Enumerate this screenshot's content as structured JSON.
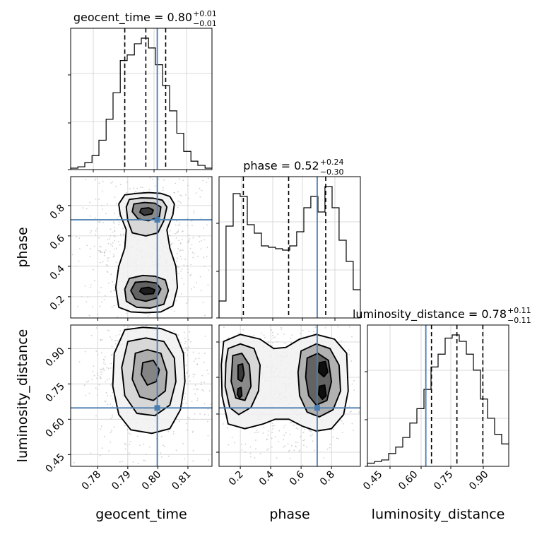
{
  "chart_data": [
    {
      "type": "histogram",
      "panel": "geocent_time",
      "title_param": "geocent_time",
      "title_value": "0.80",
      "title_plus": "+0.01",
      "title_minus": "−0.01",
      "xlim": [
        0.771,
        0.818
      ],
      "bins": [
        0.771,
        0.7734,
        0.7757,
        0.7781,
        0.7804,
        0.7828,
        0.7851,
        0.7875,
        0.7898,
        0.7922,
        0.7945,
        0.7969,
        0.7992,
        0.8016,
        0.8039,
        0.8063,
        0.8086,
        0.811,
        0.8133,
        0.8157,
        0.818
      ],
      "counts": [
        1,
        2,
        5,
        10,
        21,
        36,
        55,
        78,
        82,
        90,
        94,
        87,
        75,
        60,
        42,
        26,
        13,
        6,
        3,
        1
      ],
      "quantiles": [
        0.789,
        0.796,
        0.8026
      ],
      "truth": 0.7998
    },
    {
      "type": "histogram",
      "panel": "phase",
      "title_param": "phase",
      "title_value": "0.52",
      "title_plus": "+0.24",
      "title_minus": "−0.30",
      "xlim": [
        0.06,
        0.99
      ],
      "bins": [
        0.06,
        0.106,
        0.153,
        0.199,
        0.246,
        0.292,
        0.339,
        0.385,
        0.432,
        0.478,
        0.525,
        0.571,
        0.618,
        0.664,
        0.711,
        0.757,
        0.804,
        0.85,
        0.897,
        0.943,
        0.99
      ],
      "counts": [
        12,
        65,
        88,
        86,
        66,
        60,
        51,
        50,
        49,
        48,
        51,
        61,
        78,
        86,
        75,
        93,
        78,
        55,
        40,
        20
      ],
      "quantiles": [
        0.22,
        0.518,
        0.762
      ],
      "truth": 0.706
    },
    {
      "type": "histogram",
      "panel": "luminosity_distance",
      "title_param": "luminosity_distance",
      "title_value": "0.78",
      "title_plus": "+0.11",
      "title_minus": "−0.11",
      "xlim": [
        0.4,
        1.0
      ],
      "bins": [
        0.4,
        0.43,
        0.46,
        0.49,
        0.52,
        0.55,
        0.58,
        0.61,
        0.64,
        0.67,
        0.7,
        0.73,
        0.76,
        0.79,
        0.82,
        0.85,
        0.88,
        0.91,
        0.94,
        0.97,
        1.0
      ],
      "counts": [
        2,
        3,
        4,
        8,
        12,
        18,
        27,
        36,
        48,
        62,
        70,
        80,
        82,
        78,
        70,
        60,
        42,
        30,
        20,
        14
      ],
      "quantiles": [
        0.672,
        0.78,
        0.89
      ],
      "truth": 0.648
    },
    {
      "type": "scatter",
      "panel": "geocent_time-phase",
      "x_param": "geocent_time",
      "y_param": "phase",
      "xlim": [
        0.771,
        0.818
      ],
      "ylim": [
        0.06,
        0.99
      ],
      "ticks_y": [
        "0.2",
        "0.4",
        "0.6",
        "0.8"
      ],
      "tick_values_y": [
        0.2,
        0.4,
        0.6,
        0.8
      ],
      "truth": [
        0.7998,
        0.706
      ],
      "contours": [
        [
          [
            0.789,
            0.87
          ],
          [
            0.793,
            0.88
          ],
          [
            0.797,
            0.885
          ],
          [
            0.801,
            0.88
          ],
          [
            0.804,
            0.86
          ],
          [
            0.8055,
            0.81
          ],
          [
            0.805,
            0.74
          ],
          [
            0.803,
            0.64
          ],
          [
            0.804,
            0.52
          ],
          [
            0.806,
            0.4
          ],
          [
            0.8065,
            0.26
          ],
          [
            0.805,
            0.14
          ],
          [
            0.801,
            0.1
          ],
          [
            0.796,
            0.095
          ],
          [
            0.791,
            0.1
          ],
          [
            0.787,
            0.13
          ],
          [
            0.786,
            0.26
          ],
          [
            0.787,
            0.4
          ],
          [
            0.789,
            0.52
          ],
          [
            0.7895,
            0.64
          ],
          [
            0.7875,
            0.74
          ],
          [
            0.787,
            0.81
          ]
        ],
        [
          [
            0.7905,
            0.84
          ],
          [
            0.7945,
            0.85
          ],
          [
            0.7985,
            0.848
          ],
          [
            0.8015,
            0.835
          ],
          [
            0.803,
            0.79
          ],
          [
            0.802,
            0.7
          ],
          [
            0.8,
            0.62
          ],
          [
            0.796,
            0.6
          ],
          [
            0.7915,
            0.62
          ],
          [
            0.79,
            0.7
          ],
          [
            0.7895,
            0.79
          ]
        ],
        [
          [
            0.7905,
            0.32
          ],
          [
            0.795,
            0.34
          ],
          [
            0.799,
            0.335
          ],
          [
            0.8025,
            0.31
          ],
          [
            0.8035,
            0.24
          ],
          [
            0.802,
            0.15
          ],
          [
            0.7975,
            0.125
          ],
          [
            0.793,
            0.13
          ],
          [
            0.7895,
            0.17
          ],
          [
            0.789,
            0.25
          ]
        ],
        [
          [
            0.792,
            0.81
          ],
          [
            0.7955,
            0.82
          ],
          [
            0.799,
            0.815
          ],
          [
            0.801,
            0.79
          ],
          [
            0.8005,
            0.725
          ],
          [
            0.797,
            0.7
          ],
          [
            0.7935,
            0.71
          ],
          [
            0.7915,
            0.76
          ]
        ],
        [
          [
            0.7925,
            0.295
          ],
          [
            0.796,
            0.3
          ],
          [
            0.7995,
            0.29
          ],
          [
            0.801,
            0.25
          ],
          [
            0.7995,
            0.19
          ],
          [
            0.796,
            0.17
          ],
          [
            0.7925,
            0.185
          ],
          [
            0.791,
            0.24
          ]
        ],
        [
          [
            0.7945,
            0.78
          ],
          [
            0.797,
            0.785
          ],
          [
            0.7985,
            0.77
          ],
          [
            0.798,
            0.745
          ],
          [
            0.7955,
            0.735
          ],
          [
            0.794,
            0.755
          ]
        ],
        [
          [
            0.7945,
            0.255
          ],
          [
            0.797,
            0.262
          ],
          [
            0.799,
            0.245
          ],
          [
            0.7985,
            0.22
          ],
          [
            0.7955,
            0.215
          ],
          [
            0.794,
            0.235
          ]
        ]
      ]
    },
    {
      "type": "scatter",
      "panel": "geocent_time-luminosity_distance",
      "x_param": "geocent_time",
      "y_param": "luminosity_distance",
      "xlim": [
        0.771,
        0.818
      ],
      "ylim": [
        0.4,
        1.0
      ],
      "ticks_x": [
        "0.78",
        "0.79",
        "0.80",
        "0.81"
      ],
      "tick_values_x": [
        0.78,
        0.79,
        0.8,
        0.81
      ],
      "ticks_y": [
        "0.45",
        "0.60",
        "0.75",
        "0.90"
      ],
      "tick_values_y": [
        0.45,
        0.6,
        0.75,
        0.9
      ],
      "truth": [
        0.7998,
        0.648
      ],
      "contours": [
        [
          [
            0.789,
            0.98
          ],
          [
            0.795,
            0.99
          ],
          [
            0.801,
            0.985
          ],
          [
            0.806,
            0.96
          ],
          [
            0.8085,
            0.88
          ],
          [
            0.809,
            0.76
          ],
          [
            0.8075,
            0.64
          ],
          [
            0.804,
            0.56
          ],
          [
            0.798,
            0.54
          ],
          [
            0.791,
            0.555
          ],
          [
            0.787,
            0.62
          ],
          [
            0.785,
            0.74
          ],
          [
            0.7855,
            0.88
          ]
        ],
        [
          [
            0.79,
            0.93
          ],
          [
            0.796,
            0.945
          ],
          [
            0.802,
            0.93
          ],
          [
            0.8055,
            0.86
          ],
          [
            0.806,
            0.76
          ],
          [
            0.804,
            0.66
          ],
          [
            0.799,
            0.615
          ],
          [
            0.793,
            0.625
          ],
          [
            0.789,
            0.7
          ],
          [
            0.788,
            0.82
          ]
        ],
        [
          [
            0.7925,
            0.88
          ],
          [
            0.7965,
            0.895
          ],
          [
            0.801,
            0.88
          ],
          [
            0.803,
            0.8
          ],
          [
            0.8025,
            0.72
          ],
          [
            0.7985,
            0.68
          ],
          [
            0.794,
            0.695
          ],
          [
            0.7915,
            0.77
          ]
        ],
        [
          [
            0.795,
            0.84
          ],
          [
            0.7985,
            0.85
          ],
          [
            0.8005,
            0.81
          ],
          [
            0.7995,
            0.76
          ],
          [
            0.7965,
            0.745
          ],
          [
            0.7945,
            0.79
          ]
        ]
      ]
    },
    {
      "type": "scatter",
      "panel": "phase-luminosity_distance",
      "x_param": "phase",
      "y_param": "luminosity_distance",
      "xlim": [
        0.06,
        0.99
      ],
      "ylim": [
        0.4,
        1.0
      ],
      "ticks_x": [
        "0.2",
        "0.4",
        "0.6",
        "0.8"
      ],
      "tick_values_x": [
        0.2,
        0.4,
        0.6,
        0.8
      ],
      "truth": [
        0.706,
        0.648
      ],
      "contours": [
        [
          [
            0.09,
            0.93
          ],
          [
            0.2,
            0.96
          ],
          [
            0.33,
            0.94
          ],
          [
            0.42,
            0.9
          ],
          [
            0.5,
            0.905
          ],
          [
            0.59,
            0.94
          ],
          [
            0.7,
            0.96
          ],
          [
            0.82,
            0.94
          ],
          [
            0.9,
            0.88
          ],
          [
            0.91,
            0.72
          ],
          [
            0.88,
            0.62
          ],
          [
            0.8,
            0.56
          ],
          [
            0.7,
            0.55
          ],
          [
            0.61,
            0.57
          ],
          [
            0.52,
            0.6
          ],
          [
            0.43,
            0.6
          ],
          [
            0.35,
            0.58
          ],
          [
            0.23,
            0.56
          ],
          [
            0.12,
            0.58
          ],
          [
            0.08,
            0.7
          ],
          [
            0.075,
            0.83
          ]
        ],
        [
          [
            0.12,
            0.9
          ],
          [
            0.2,
            0.92
          ],
          [
            0.29,
            0.9
          ],
          [
            0.33,
            0.83
          ],
          [
            0.32,
            0.72
          ],
          [
            0.27,
            0.65
          ],
          [
            0.19,
            0.62
          ],
          [
            0.13,
            0.65
          ],
          [
            0.1,
            0.74
          ],
          [
            0.105,
            0.84
          ]
        ],
        [
          [
            0.6,
            0.89
          ],
          [
            0.7,
            0.92
          ],
          [
            0.79,
            0.9
          ],
          [
            0.85,
            0.83
          ],
          [
            0.86,
            0.72
          ],
          [
            0.81,
            0.64
          ],
          [
            0.72,
            0.61
          ],
          [
            0.64,
            0.63
          ],
          [
            0.59,
            0.7
          ],
          [
            0.58,
            0.8
          ]
        ],
        [
          [
            0.15,
            0.87
          ],
          [
            0.21,
            0.88
          ],
          [
            0.26,
            0.83
          ],
          [
            0.27,
            0.74
          ],
          [
            0.23,
            0.68
          ],
          [
            0.17,
            0.69
          ],
          [
            0.14,
            0.76
          ]
        ],
        [
          [
            0.64,
            0.86
          ],
          [
            0.71,
            0.88
          ],
          [
            0.78,
            0.85
          ],
          [
            0.8,
            0.76
          ],
          [
            0.77,
            0.68
          ],
          [
            0.7,
            0.66
          ],
          [
            0.65,
            0.7
          ],
          [
            0.63,
            0.78
          ]
        ],
        [
          [
            0.185,
            0.83
          ],
          [
            0.215,
            0.835
          ],
          [
            0.225,
            0.79
          ],
          [
            0.21,
            0.76
          ],
          [
            0.185,
            0.77
          ]
        ],
        [
          [
            0.185,
            0.73
          ],
          [
            0.205,
            0.735
          ],
          [
            0.21,
            0.7
          ],
          [
            0.195,
            0.69
          ],
          [
            0.18,
            0.705
          ]
        ],
        [
          [
            0.72,
            0.84
          ],
          [
            0.76,
            0.845
          ],
          [
            0.775,
            0.8
          ],
          [
            0.75,
            0.78
          ],
          [
            0.715,
            0.8
          ]
        ],
        [
          [
            0.72,
            0.74
          ],
          [
            0.755,
            0.745
          ],
          [
            0.765,
            0.7
          ],
          [
            0.74,
            0.685
          ],
          [
            0.715,
            0.705
          ]
        ]
      ]
    }
  ],
  "axes": {
    "x_labels": [
      "geocent_time",
      "phase",
      "luminosity_distance"
    ],
    "y_labels": [
      "phase",
      "luminosity_distance"
    ]
  },
  "colors": {
    "truth": "#4a7eb0",
    "contour": "#000000",
    "scatter": "#bbbbbb",
    "grid": "#cfcfcf"
  }
}
